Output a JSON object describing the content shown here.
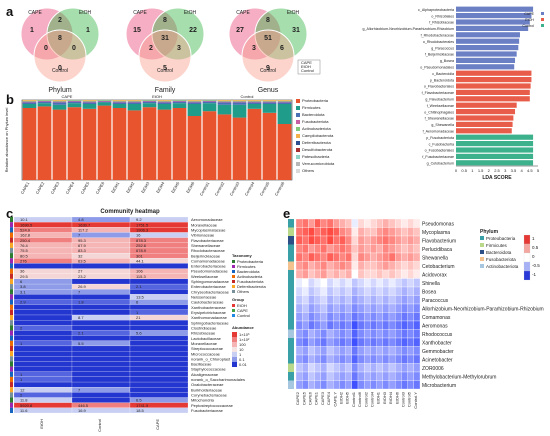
{
  "panels": {
    "a": "a",
    "b": "b",
    "c": "c",
    "d": "d",
    "e": "e"
  },
  "venn": [
    {
      "title": "Phylum",
      "sets": [
        "CAPE",
        "EtOH",
        "Control"
      ],
      "regions": {
        "a_only": "1",
        "b_only": "1",
        "c_only": "0",
        "ab": "2",
        "ac": "0",
        "bc": "0",
        "abc": "8"
      },
      "colors": [
        "#e94b7a",
        "#3ab54a",
        "#f8a08f"
      ]
    },
    {
      "title": "Family",
      "sets": [
        "CAPE",
        "EtOH",
        "Control"
      ],
      "regions": {
        "a_only": "15",
        "b_only": "22",
        "c_only": "5",
        "ab": "8",
        "ac": "2",
        "bc": "3",
        "abc": "31"
      },
      "colors": [
        "#e94b7a",
        "#3ab54a",
        "#f8a08f"
      ]
    },
    {
      "title": "Genus",
      "sets": [
        "CAPE",
        "EtOH",
        "Control"
      ],
      "regions": {
        "a_only": "27",
        "b_only": "31",
        "c_only": "9",
        "ab": "8",
        "ac": "3",
        "bc": "6",
        "abc": "51"
      },
      "colors": [
        "#e94b7a",
        "#3ab54a",
        "#f8a08f"
      ]
    }
  ],
  "barplot": {
    "ylabel": "Relative abundance on Phylum level",
    "groups": [
      "CAPE",
      "EtOH",
      "Control"
    ],
    "samples": [
      "CAPE1",
      "CAPE2",
      "CAPE3",
      "CAPE4",
      "CAPE5",
      "CAPE6",
      "EtOH1",
      "EtOH2",
      "EtOH3",
      "EtOH4",
      "EtOH5",
      "EtOH6",
      "Control1",
      "Control2",
      "Control3",
      "Control4",
      "Control5",
      "Control6"
    ],
    "legend": [
      "Proteobacteria",
      "Firmicutes",
      "Bacteroidota",
      "Fusobacteriota",
      "Actinobacteriota",
      "Campilobacterota",
      "Deferribacterota",
      "Desulfobacterota",
      "Patescibacteria",
      "Verrucomicrobiota",
      "Others"
    ],
    "colors": [
      "#e8542d",
      "#1f9d8a",
      "#4a6fb4",
      "#c85fa6",
      "#7fc87c",
      "#f3b14a",
      "#2e4f8f",
      "#a83232",
      "#8dd3c7",
      "#b8b8b8",
      "#d9d9d9"
    ],
    "stacks": [
      [
        0.9,
        0.05,
        0.02,
        0.01,
        0.01,
        0.01
      ],
      [
        0.92,
        0.04,
        0.02,
        0.01,
        0.01,
        0.0
      ],
      [
        0.88,
        0.06,
        0.03,
        0.01,
        0.01,
        0.01
      ],
      [
        0.91,
        0.05,
        0.02,
        0.01,
        0.01,
        0.0
      ],
      [
        0.89,
        0.06,
        0.02,
        0.01,
        0.01,
        0.01
      ],
      [
        0.93,
        0.04,
        0.01,
        0.01,
        0.01,
        0.0
      ],
      [
        0.9,
        0.05,
        0.02,
        0.01,
        0.01,
        0.01
      ],
      [
        0.87,
        0.08,
        0.02,
        0.01,
        0.01,
        0.01
      ],
      [
        0.91,
        0.05,
        0.02,
        0.01,
        0.01,
        0.0
      ],
      [
        0.88,
        0.07,
        0.02,
        0.01,
        0.01,
        0.01
      ],
      [
        0.9,
        0.06,
        0.02,
        0.01,
        0.01,
        0.0
      ],
      [
        0.8,
        0.15,
        0.02,
        0.01,
        0.01,
        0.01
      ],
      [
        0.86,
        0.1,
        0.02,
        0.01,
        0.01,
        0.0
      ],
      [
        0.82,
        0.12,
        0.03,
        0.01,
        0.01,
        0.01
      ],
      [
        0.78,
        0.16,
        0.03,
        0.01,
        0.01,
        0.01
      ],
      [
        0.89,
        0.06,
        0.02,
        0.01,
        0.01,
        0.01
      ],
      [
        0.84,
        0.11,
        0.02,
        0.01,
        0.01,
        0.01
      ],
      [
        0.7,
        0.25,
        0.02,
        0.01,
        0.01,
        0.01
      ]
    ]
  },
  "heatmap_c": {
    "title": "Community heatmap",
    "columns": [
      "EtOH",
      "Control",
      "CAPE"
    ],
    "rows": [
      "Aeromonadaceae",
      "Moraxellaceae",
      "Mycoplasmataceae",
      "Vibrionaceae",
      "Flavobacteriaceae",
      "Shewanellaceae",
      "Rhodobacteraceae",
      "Beijerinckiaceae",
      "Comamonadaceae",
      "Enterobacteriaceae",
      "Pseudomonadaceae",
      "Weeksellaceae",
      "Sphingomonadaceae",
      "Enterobacteriaceae",
      "Chryseobacteriaceae",
      "Neisseriaceae",
      "Caulobacteraceae",
      "Xanthobacteraceae",
      "Erysipelotrichaceae",
      "Xanthomonadaceae",
      "Sphingobacteriaceae",
      "Clostridiaceae",
      "Rhizobiaceae",
      "Lactobacillaceae",
      "Moraxellaceae",
      "Streptococcaceae",
      "Micrococcaceae",
      "norank_o_Chloroplast",
      "Bacillaceae",
      "Staphylococcaceae",
      "Alcaligenaceae",
      "norank_o_Saccharimonadales",
      "Oxalobacteraceae",
      "Burkholderiaceae",
      "Corynebacteriaceae",
      "Mitochondria",
      "Peptostreptococcaceae",
      "Fusobacteriaceae"
    ],
    "values": [
      [
        "10.1",
        "4.8",
        "9.2"
      ],
      [
        "1690.5",
        "1630.7",
        "1751.5"
      ],
      [
        "524.9",
        "117.2",
        "1906.3"
      ],
      [
        "162.8",
        "7",
        "16"
      ],
      [
        "250.4",
        "95.3",
        "878.3"
      ],
      [
        "76.4",
        "67.9",
        "252.6"
      ],
      [
        "75.5",
        "83.3",
        "678.9"
      ],
      [
        "80.5",
        "32",
        "301"
      ],
      [
        "276",
        "63.5",
        "44.1"
      ],
      [
        "",
        "",
        ""
      ],
      [
        "36",
        "27",
        "106"
      ],
      [
        "29.5",
        "23.2",
        "115.3"
      ],
      [
        "6",
        "",
        ""
      ],
      [
        "3.8",
        "26.9",
        "2.1"
      ],
      [
        "3.1",
        "7",
        ""
      ],
      [
        "",
        "",
        "13.5"
      ],
      [
        "2.9",
        "1.8",
        "6"
      ],
      [
        "",
        "",
        ""
      ],
      [
        "",
        "",
        "1"
      ],
      [
        "",
        "8.7",
        "21"
      ],
      [
        "",
        "",
        ""
      ],
      [
        "2",
        "",
        ""
      ],
      [
        "",
        "2.1",
        "5.6"
      ],
      [
        "",
        "",
        ""
      ],
      [
        "1",
        "5.5",
        ""
      ],
      [
        "",
        "",
        ""
      ],
      [
        "",
        "",
        ""
      ],
      [
        "",
        "",
        ""
      ],
      [
        "",
        "",
        ""
      ],
      [
        "",
        "",
        ""
      ],
      [
        "1",
        "",
        ""
      ],
      [
        "1",
        "",
        ""
      ],
      [
        "",
        "",
        ""
      ],
      [
        "12",
        "7",
        ""
      ],
      [
        "2",
        "",
        ""
      ],
      [
        "11.8",
        "",
        "6.5"
      ],
      [
        "5920.8",
        "446.5",
        "1741.5"
      ],
      [
        "11.6",
        "16.9",
        "18.5"
      ]
    ],
    "legend_taxonomy_title": "Taxonomy",
    "legend_taxonomy": [
      "Proteobacteria",
      "Firmicutes",
      "Bacteroidota",
      "Actinobacteria",
      "Fusobacteriota",
      "Deferribacterota",
      "Others"
    ],
    "legend_taxonomy_colors": [
      "#2e7d32",
      "#9c27b0",
      "#1565c0",
      "#ef6c00",
      "#c62828",
      "#f9a825",
      "#78909c"
    ],
    "legend_group_title": "Group",
    "legend_group": [
      "EtOH",
      "CAPE",
      "Control"
    ],
    "legend_abundance_title": "Abundance",
    "legend_abundance": [
      "1×10³",
      "1×10²",
      "100",
      "10",
      "1",
      "0.1",
      "0.01"
    ]
  },
  "lda": {
    "xlabel": "LDA SCORE",
    "ticks": [
      "0",
      "0.5",
      "1",
      "1.5",
      "2",
      "2.5",
      "3",
      "3.5",
      "4",
      "4.5",
      "5"
    ],
    "legend": [
      "CAPE",
      "EtOH",
      "Control"
    ],
    "colors": [
      "#6b7fc4",
      "#e85c4a",
      "#3db08c"
    ],
    "bars": [
      {
        "label": "c_Alphaproteobacteria",
        "group": 0,
        "value": 4.7
      },
      {
        "label": "o_Rhizobiales",
        "group": 0,
        "value": 4.6
      },
      {
        "label": "f_Rhizobiaceae",
        "group": 0,
        "value": 4.5
      },
      {
        "label": "g_Allorhizobium-Neorhizobium-Pararhizobium-Rhizobium",
        "group": 0,
        "value": 4.4
      },
      {
        "label": "f_Rhodobacteraceae",
        "group": 0,
        "value": 3.9
      },
      {
        "label": "o_Rhodobacterales",
        "group": 0,
        "value": 3.85
      },
      {
        "label": "g_Paracoccus",
        "group": 0,
        "value": 3.8
      },
      {
        "label": "f_Beijerinckiaceae",
        "group": 0,
        "value": 3.7
      },
      {
        "label": "g_Bosea",
        "group": 0,
        "value": 3.6
      },
      {
        "label": "o_Pseudomonadales",
        "group": 0,
        "value": 3.55
      },
      {
        "label": "c_Bacteroidia",
        "group": 1,
        "value": 4.6
      },
      {
        "label": "p_Bacteroidota",
        "group": 1,
        "value": 4.6
      },
      {
        "label": "o_Flavobacteriales",
        "group": 1,
        "value": 4.55
      },
      {
        "label": "f_Flavobacteriaceae",
        "group": 1,
        "value": 4.5
      },
      {
        "label": "g_Flavobacterium",
        "group": 1,
        "value": 4.5
      },
      {
        "label": "f_Weeksellaceae",
        "group": 1,
        "value": 3.7
      },
      {
        "label": "o_Chitinophagales",
        "group": 1,
        "value": 3.6
      },
      {
        "label": "f_Shewanellaceae",
        "group": 1,
        "value": 3.5
      },
      {
        "label": "g_Shewanella",
        "group": 1,
        "value": 3.45
      },
      {
        "label": "f_Aeromonadaceae",
        "group": 1,
        "value": 3.4
      },
      {
        "label": "p_Fusobacteriota",
        "group": 2,
        "value": 4.7
      },
      {
        "label": "c_Fusobacteriia",
        "group": 2,
        "value": 4.7
      },
      {
        "label": "o_Fusobacteriales",
        "group": 2,
        "value": 4.7
      },
      {
        "label": "f_Fusobacteriaceae",
        "group": 2,
        "value": 4.7
      },
      {
        "label": "g_Cetobacterium",
        "group": 2,
        "value": 4.7
      }
    ]
  },
  "heatmap_e": {
    "rows": [
      "Pseudomonas",
      "Mycoplasma",
      "Flavobacterium",
      "Perlucidibaca",
      "Shewanella",
      "Cetobacterium",
      "Acidovorax",
      "Shinella",
      "Bosea",
      "Paracoccus",
      "Allorhizobium-Neorhizobium-Pararhizobium-Rhizobium",
      "Comamonas",
      "Aeromonas",
      "Rhodococcus",
      "Xanthobacter",
      "Gemmobacter",
      "Acinetobacter",
      "ZOR0006",
      "Methylobacterium-Methylorubrum",
      "Microbacterium"
    ],
    "cols": [
      "CAPE2",
      "CAPE5",
      "CAPE6",
      "CAPE1",
      "CAPE3",
      "CAPE4",
      "CAPE.Y",
      "EtOH2",
      "EtOH5",
      "Control1",
      "Control6",
      "Control2",
      "Control4",
      "EtOH1",
      "EtOH3",
      "EtOH4",
      "EtOH6",
      "Control3",
      "Control5",
      "Control.Y"
    ],
    "phylum_title": "Phylum",
    "phylum": [
      "Proteobacteria",
      "Firmicutes",
      "Bacteroidota",
      "Fusobacteriota",
      "Actinobacteriota"
    ],
    "phylum_colors": [
      "#3aa0a8",
      "#b9d88a",
      "#2c4f87",
      "#f4c28e",
      "#a7c6e0"
    ],
    "row_phylum": [
      0,
      1,
      2,
      0,
      0,
      3,
      0,
      0,
      0,
      0,
      0,
      0,
      0,
      4,
      0,
      0,
      0,
      1,
      0,
      4
    ],
    "scale": [
      "1",
      "0.5",
      "0",
      "-0.5",
      "-1"
    ],
    "values": [
      [
        0.6,
        0.7,
        0.5,
        0.8,
        0.6,
        0.7,
        0.5,
        0.4,
        0.3,
        -0.1,
        0.2,
        0.1,
        0.2,
        0.3,
        0.4,
        0.3,
        0.2,
        0.1,
        0.2,
        0.1
      ],
      [
        0.7,
        0.8,
        0.9,
        0.7,
        0.8,
        0.9,
        0.8,
        0.6,
        0.5,
        0.1,
        0.4,
        0.3,
        0.3,
        0.5,
        0.6,
        0.5,
        0.4,
        0.3,
        0.4,
        0.3
      ],
      [
        0.8,
        0.7,
        0.9,
        0.8,
        0.7,
        0.9,
        0.7,
        0.8,
        0.6,
        0.2,
        0.5,
        0.4,
        0.5,
        0.6,
        0.7,
        0.6,
        0.5,
        0.4,
        0.5,
        0.4
      ],
      [
        0.6,
        0.7,
        0.5,
        0.6,
        0.7,
        0.5,
        0.6,
        0.7,
        0.6,
        0.3,
        0.5,
        0.4,
        0.5,
        0.4,
        0.6,
        0.5,
        0.4,
        0.3,
        0.4,
        0.3
      ],
      [
        0.7,
        0.6,
        0.8,
        0.7,
        0.6,
        0.8,
        0.7,
        0.6,
        0.7,
        0.2,
        0.6,
        0.5,
        0.4,
        0.5,
        0.6,
        0.7,
        0.5,
        0.4,
        0.5,
        0.4
      ],
      [
        0.5,
        0.6,
        0.4,
        0.5,
        0.6,
        0.4,
        0.5,
        0.6,
        0.5,
        0.1,
        0.4,
        0.3,
        0.3,
        0.4,
        0.5,
        0.4,
        0.3,
        0.2,
        0.3,
        0.2
      ],
      [
        0.4,
        0.5,
        0.3,
        0.4,
        0.5,
        0.3,
        0.4,
        0.3,
        0.4,
        0.0,
        0.3,
        0.2,
        0.2,
        0.3,
        0.2,
        0.3,
        0.2,
        0.1,
        0.2,
        0.1
      ],
      [
        -0.1,
        0.0,
        -0.2,
        -0.1,
        0.0,
        -0.2,
        -0.1,
        -0.2,
        -0.1,
        -0.3,
        -0.2,
        -0.1,
        -0.2,
        -0.1,
        -0.2,
        -0.1,
        -0.2,
        -0.3,
        -0.2,
        -0.3
      ],
      [
        -0.2,
        -0.1,
        -0.3,
        -0.2,
        -0.1,
        -0.3,
        -0.2,
        -0.3,
        -0.2,
        -0.4,
        -0.3,
        -0.2,
        -0.3,
        -0.2,
        -0.3,
        -0.2,
        -0.3,
        -0.4,
        -0.3,
        -0.4
      ],
      [
        -0.3,
        -0.2,
        -0.4,
        -0.3,
        -0.2,
        -0.4,
        -0.3,
        -0.4,
        -0.3,
        -0.5,
        -0.4,
        -0.3,
        -0.4,
        -0.3,
        -0.4,
        -0.3,
        -0.4,
        -0.5,
        -0.4,
        -0.5
      ],
      [
        -0.4,
        -0.3,
        -0.5,
        -0.4,
        -0.3,
        -0.5,
        -0.4,
        -0.5,
        -0.4,
        -0.6,
        -0.5,
        -0.4,
        -0.5,
        -0.4,
        -0.5,
        -0.4,
        -0.5,
        -0.6,
        -0.5,
        -0.6
      ],
      [
        -0.5,
        -0.4,
        -0.6,
        -0.5,
        -0.4,
        -0.6,
        -0.5,
        -0.6,
        -0.5,
        -0.7,
        -0.6,
        -0.5,
        -0.6,
        -0.5,
        -0.6,
        -0.5,
        -0.6,
        -0.7,
        -0.6,
        -0.7
      ],
      [
        -0.6,
        -0.5,
        -0.7,
        -0.6,
        -0.5,
        -0.7,
        -0.6,
        -0.7,
        -0.6,
        -0.9,
        -0.7,
        -0.6,
        -0.7,
        -0.6,
        -0.7,
        -0.6,
        -0.7,
        -0.8,
        -0.7,
        -0.8
      ],
      [
        -0.5,
        -0.6,
        -0.4,
        -0.5,
        -0.6,
        -0.4,
        -0.5,
        -0.6,
        -0.5,
        -0.8,
        -0.6,
        -0.5,
        -0.6,
        -0.5,
        -0.6,
        -0.5,
        -0.6,
        -0.7,
        -0.6,
        -0.7
      ],
      [
        -0.6,
        -0.7,
        -0.5,
        -0.6,
        -0.7,
        -0.5,
        -0.6,
        -0.7,
        -0.6,
        -0.9,
        -0.7,
        -0.6,
        -0.7,
        -0.6,
        -0.7,
        -0.6,
        -0.7,
        -0.8,
        -0.7,
        -0.8
      ],
      [
        -0.4,
        -0.5,
        -0.3,
        -0.4,
        -0.5,
        -0.3,
        -0.4,
        -0.5,
        -0.4,
        -0.7,
        -0.5,
        -0.4,
        -0.5,
        -0.4,
        -0.5,
        -0.4,
        -0.5,
        -0.6,
        -0.5,
        -0.6
      ],
      [
        -0.5,
        -0.6,
        -0.4,
        -0.5,
        -0.6,
        -0.4,
        -0.5,
        -0.6,
        -0.5,
        -0.8,
        -0.6,
        -0.5,
        -0.6,
        -0.5,
        -0.6,
        -0.5,
        -0.6,
        -0.7,
        -0.6,
        -0.7
      ],
      [
        -0.3,
        -0.4,
        -0.2,
        -0.3,
        -0.4,
        -0.2,
        -0.3,
        -0.4,
        -0.3,
        -0.6,
        -0.4,
        -0.3,
        -0.4,
        -0.3,
        -0.4,
        -0.3,
        -0.4,
        -0.5,
        -0.4,
        -0.5
      ],
      [
        -0.4,
        -0.5,
        -0.3,
        -0.4,
        -0.5,
        -0.3,
        -0.4,
        -0.5,
        -0.4,
        -0.7,
        -0.5,
        -0.4,
        -0.5,
        -0.4,
        -0.5,
        -0.4,
        -0.5,
        -0.6,
        -0.5,
        -0.6
      ],
      [
        -0.5,
        -0.6,
        -0.4,
        -0.5,
        -0.6,
        -0.4,
        -0.5,
        -0.6,
        -0.5,
        -0.9,
        -0.6,
        -0.5,
        -0.6,
        -0.5,
        -0.6,
        -0.5,
        -0.6,
        -0.7,
        -0.6,
        -0.7
      ]
    ]
  }
}
